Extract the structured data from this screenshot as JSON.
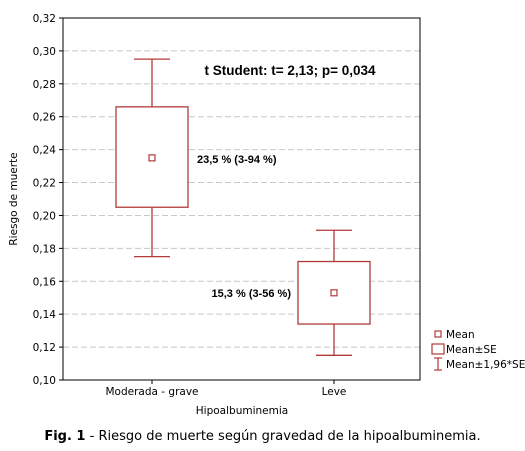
{
  "chart_data": {
    "type": "box",
    "annotation": "t Student: t= 2,13; p= 0,034",
    "xlabel": "Hipoalbuminemia",
    "ylabel": "Riesgo de muerte",
    "ylim": [
      0.1,
      0.32
    ],
    "yticks": [
      0.1,
      0.12,
      0.14,
      0.16,
      0.18,
      0.2,
      0.22,
      0.24,
      0.26,
      0.28,
      0.3,
      0.32
    ],
    "ytick_labels": [
      "0,10",
      "0,12",
      "0,14",
      "0,16",
      "0,18",
      "0,20",
      "0,22",
      "0,24",
      "0,26",
      "0,28",
      "0,30",
      "0,32"
    ],
    "grid": true,
    "color": "#b03a3a",
    "categories": [
      "Moderada - grave",
      "Leve"
    ],
    "boxes": [
      {
        "category": "Moderada - grave",
        "mean": 0.235,
        "se_low": 0.205,
        "se_high": 0.266,
        "ci_low": 0.175,
        "ci_high": 0.295,
        "label": "23,5 % (3-94 %)"
      },
      {
        "category": "Leve",
        "mean": 0.153,
        "se_low": 0.134,
        "se_high": 0.172,
        "ci_low": 0.115,
        "ci_high": 0.191,
        "label": "15,3 % (3-56 %)"
      }
    ],
    "legend": {
      "position": "bottom-right",
      "items": [
        {
          "symbol": "mean-marker",
          "label": "Mean"
        },
        {
          "symbol": "se-box",
          "label": "Mean±SE"
        },
        {
          "symbol": "ci-whisker",
          "label": "Mean±1,96*SE"
        }
      ]
    }
  },
  "caption": {
    "label": "Fig.  1",
    "text": " - Riesgo de muerte según gravedad de la hipoalbuminemia."
  }
}
